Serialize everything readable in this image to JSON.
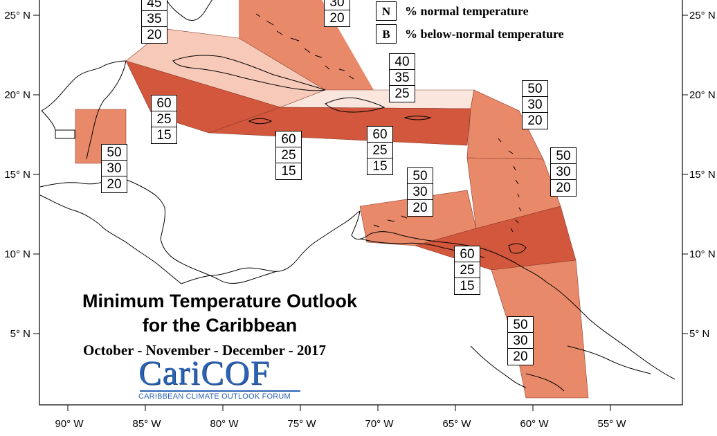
{
  "title": {
    "line1": "Minimum Temperature Outlook",
    "line2": "for the Caribbean",
    "period": "October - November - December - 2017"
  },
  "logo": {
    "name": "CariCOF",
    "tagline": "CARIBBEAN CLIMATE OUTLOOK FORUM"
  },
  "legend": [
    {
      "key": "N",
      "label": "% normal temperature"
    },
    {
      "key": "B",
      "label": "% below-normal temperature"
    }
  ],
  "latitude_labels": [
    "25° N",
    "20° N",
    "15° N",
    "10° N",
    "5° N"
  ],
  "longitude_labels": [
    "90° W",
    "85° W",
    "80° W",
    "75° W",
    "70° W",
    "65° W",
    "60° W",
    "55° W"
  ],
  "colors": {
    "above_60": "#d2573c",
    "above_50": "#e8896a",
    "above_45": "#f6c9b8",
    "above_40": "#fbe6de",
    "land_outline": "#000000"
  },
  "regions": [
    {
      "id": "bahamas-north",
      "probabilities": [
        "45",
        "35",
        "20"
      ]
    },
    {
      "id": "bahamas-turks",
      "probabilities": [
        "",
        "30",
        "20"
      ]
    },
    {
      "id": "hispaniola-north",
      "probabilities": [
        "40",
        "35",
        "25"
      ]
    },
    {
      "id": "belize",
      "probabilities": [
        "50",
        "30",
        "20"
      ]
    },
    {
      "id": "cayman-cuba-south",
      "probabilities": [
        "60",
        "25",
        "15"
      ]
    },
    {
      "id": "jamaica",
      "probabilities": [
        "60",
        "25",
        "15"
      ]
    },
    {
      "id": "puerto-rico",
      "probabilities": [
        "60",
        "25",
        "15"
      ]
    },
    {
      "id": "leeward-islands",
      "probabilities": [
        "50",
        "30",
        "20"
      ]
    },
    {
      "id": "windward-islands",
      "probabilities": [
        "50",
        "30",
        "20"
      ]
    },
    {
      "id": "abc-islands",
      "probabilities": [
        "50",
        "30",
        "20"
      ]
    },
    {
      "id": "trinidad-tobago",
      "probabilities": [
        "60",
        "25",
        "15"
      ]
    },
    {
      "id": "guianas",
      "probabilities": [
        "50",
        "30",
        "20"
      ]
    }
  ]
}
